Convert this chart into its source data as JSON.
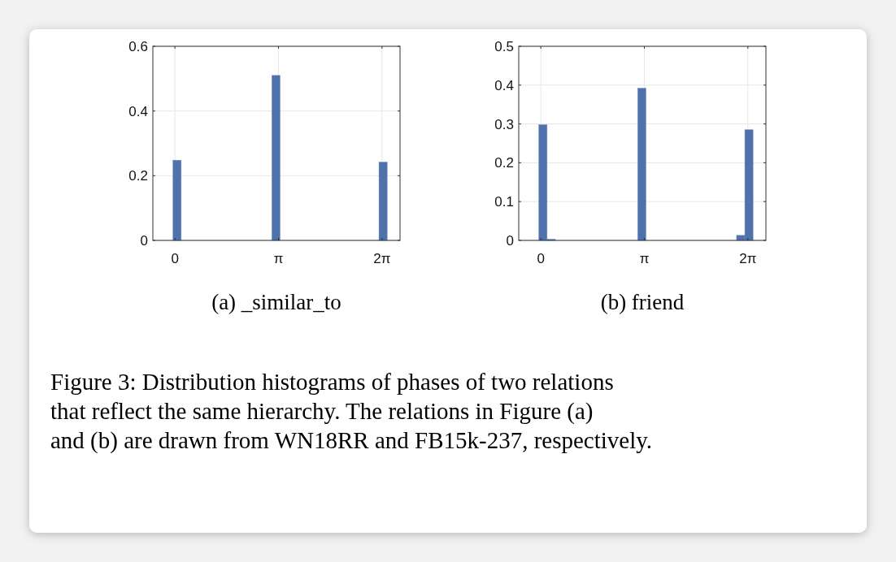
{
  "chart_data": [
    {
      "type": "histogram",
      "xlabel": "(a) _similar_to",
      "bins": [
        -0.06,
        0.19,
        0.44,
        0.69,
        0.94,
        1.19,
        1.44,
        1.69,
        1.94,
        2.19,
        2.44,
        2.69,
        2.94,
        3.19,
        3.44,
        3.69,
        3.94,
        4.19,
        4.44,
        4.69,
        4.94,
        5.19,
        5.44,
        5.69,
        5.94,
        6.19,
        6.44,
        6.69
      ],
      "values": [
        0.248,
        0,
        0,
        0,
        0,
        0,
        0,
        0,
        0,
        0,
        0,
        0,
        0.51,
        0,
        0,
        0,
        0,
        0,
        0,
        0,
        0,
        0,
        0,
        0,
        0,
        0.242,
        0
      ],
      "color": "#4f72ad",
      "xlim": [
        -0.67,
        6.83
      ],
      "xticks": [
        {
          "value": 0,
          "label": "0"
        },
        {
          "value": 3.1416,
          "label": "π"
        },
        {
          "value": 6.2832,
          "label": "2π"
        }
      ],
      "ylim": [
        0,
        0.6
      ],
      "yticks": [
        0,
        0.2,
        0.4,
        0.6
      ],
      "grid": true
    },
    {
      "type": "histogram",
      "xlabel": "(b) friend",
      "bins": [
        -0.06,
        0.19,
        0.44,
        0.69,
        0.94,
        1.19,
        1.44,
        1.69,
        1.94,
        2.19,
        2.44,
        2.69,
        2.94,
        3.19,
        3.44,
        3.69,
        3.94,
        4.19,
        4.44,
        4.69,
        4.94,
        5.19,
        5.44,
        5.69,
        5.94,
        6.19,
        6.44,
        6.69
      ],
      "values": [
        0.298,
        0.003,
        null,
        0,
        0,
        0,
        0,
        0,
        0,
        0,
        0,
        0,
        0.392,
        null,
        0,
        null,
        0,
        null,
        0,
        0,
        0,
        0,
        0,
        0,
        0.013,
        0.285,
        0
      ],
      "color": "#4f72ad",
      "xlim": [
        -0.67,
        6.83
      ],
      "xticks": [
        {
          "value": 0,
          "label": "0"
        },
        {
          "value": 3.1416,
          "label": "π"
        },
        {
          "value": 6.2832,
          "label": "2π"
        }
      ],
      "ylim": [
        0,
        0.5
      ],
      "yticks": [
        0,
        0.1,
        0.2,
        0.3,
        0.4,
        0.5
      ],
      "grid": true
    },
    {
      "type": "other",
      "annotations": [
        "Figure 3: Distribution histograms of phases of two relations that reflect the same hierarchy. The relations in Figure (a) and (b) are drawn from WN18RR and FB15k-237, respectively."
      ]
    }
  ]
}
